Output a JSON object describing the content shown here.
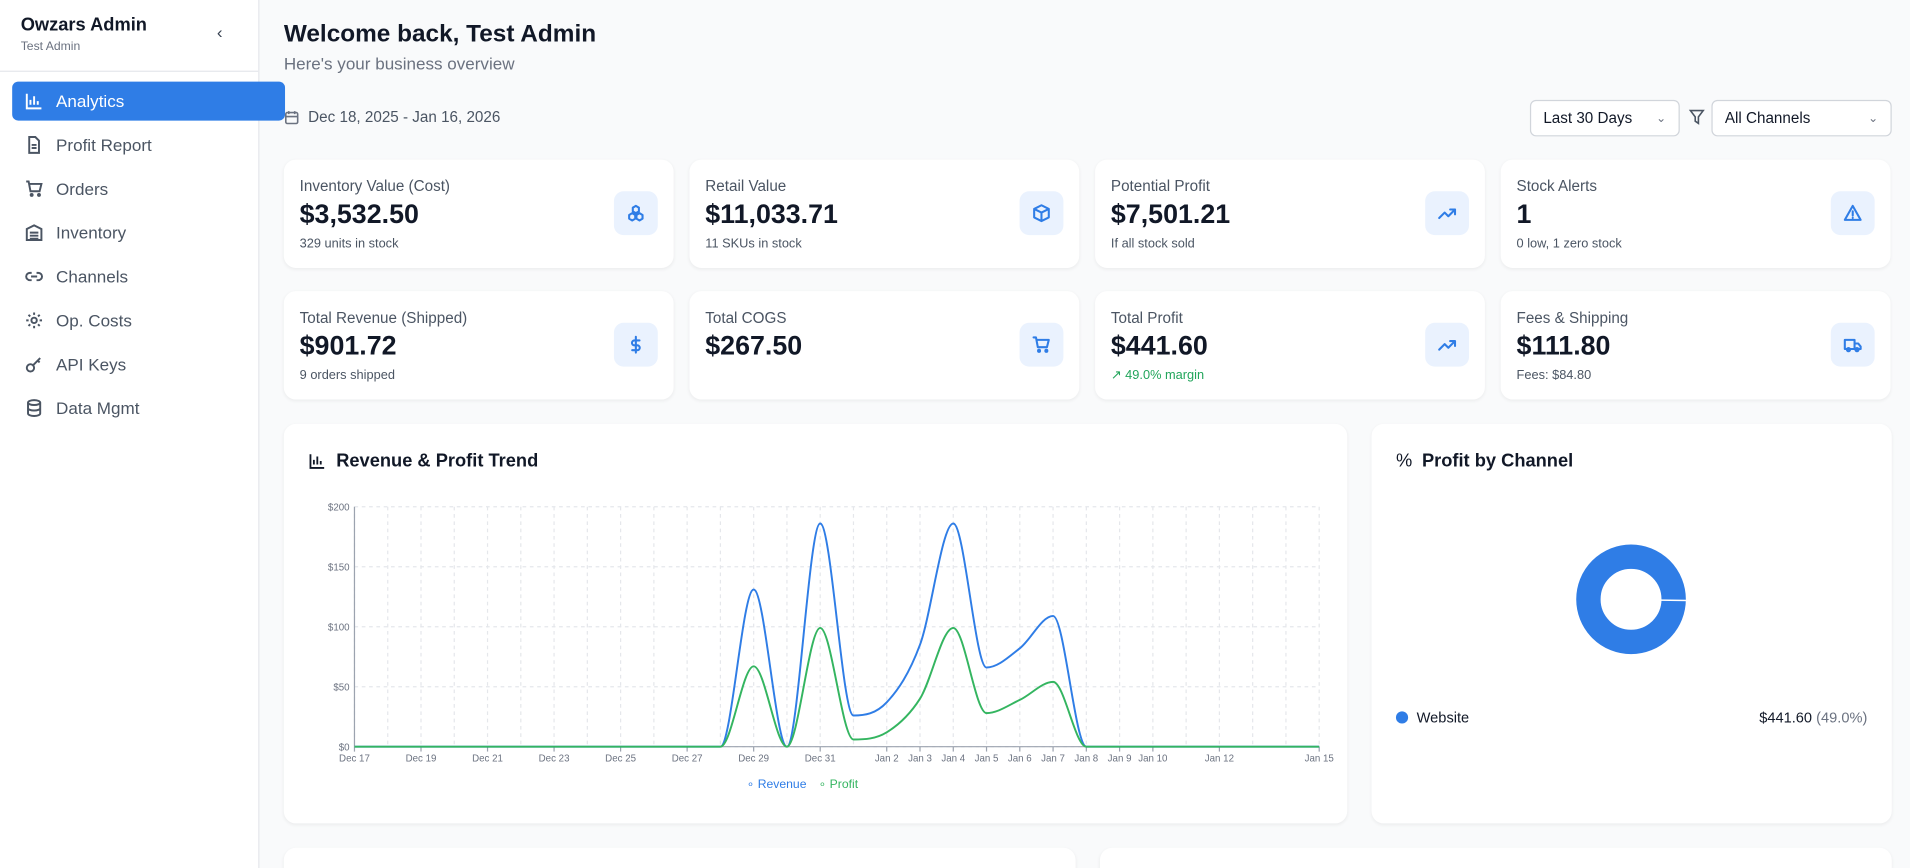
{
  "sidebar": {
    "title": "Owzars Admin",
    "user": "Test Admin",
    "collapse_icon": "chevron-left-icon",
    "items": [
      {
        "label": "Analytics",
        "icon": "bar-chart-icon",
        "active": true
      },
      {
        "label": "Profit Report",
        "icon": "file-spreadsheet-icon"
      },
      {
        "label": "Orders",
        "icon": "cart-icon"
      },
      {
        "label": "Inventory",
        "icon": "warehouse-icon"
      },
      {
        "label": "Channels",
        "icon": "link-icon"
      },
      {
        "label": "Op. Costs",
        "icon": "gear-icon"
      },
      {
        "label": "API Keys",
        "icon": "key-icon"
      },
      {
        "label": "Data Mgmt",
        "icon": "database-icon"
      }
    ]
  },
  "header": {
    "title": "Welcome back, Test Admin",
    "subtitle": "Here's your business overview",
    "date_range": "Dec 18, 2025 - Jan 16, 2026",
    "period": "Last 30 Days",
    "channel": "All Channels"
  },
  "stats": [
    {
      "label": "Inventory Value (Cost)",
      "value": "$3,532.50",
      "sub": "329 units in stock",
      "icon": "boxes-icon"
    },
    {
      "label": "Retail Value",
      "value": "$11,033.71",
      "sub": "11 SKUs in stock",
      "icon": "package-icon"
    },
    {
      "label": "Potential Profit",
      "value": "$7,501.21",
      "sub": "If all stock sold",
      "icon": "trending-up-icon"
    },
    {
      "label": "Stock Alerts",
      "value": "1",
      "sub": "0 low, 1 zero stock",
      "icon": "alert-triangle-icon"
    },
    {
      "label": "Total Revenue (Shipped)",
      "value": "$901.72",
      "sub": "9 orders shipped",
      "icon": "dollar-icon"
    },
    {
      "label": "Total COGS",
      "value": "$267.50",
      "sub": "",
      "icon": "cart-icon"
    },
    {
      "label": "Total Profit",
      "value": "$441.60",
      "sub": "49.0% margin",
      "sub_color": "#22a55b",
      "icon": "trending-up-icon"
    },
    {
      "label": "Fees & Shipping",
      "value": "$111.80",
      "sub": "Fees: $84.80",
      "icon": "truck-icon"
    }
  ],
  "colors": {
    "accent": "#2f7de6",
    "revenue": "#2f7de6",
    "profit": "#34b560"
  },
  "chart_data": [
    {
      "type": "line",
      "title": "Revenue & Profit Trend",
      "x": [
        "Dec 17",
        "Dec 18",
        "Dec 19",
        "Dec 20",
        "Dec 21",
        "Dec 22",
        "Dec 23",
        "Dec 24",
        "Dec 25",
        "Dec 26",
        "Dec 27",
        "Dec 28",
        "Dec 29",
        "Dec 30",
        "Dec 31",
        "Jan 1",
        "Jan 2",
        "Jan 3",
        "Jan 4",
        "Jan 5",
        "Jan 6",
        "Jan 7",
        "Jan 8",
        "Jan 9",
        "Jan 10",
        "Jan 11",
        "Jan 12",
        "Jan 13",
        "Jan 14",
        "Jan 15"
      ],
      "x_ticks": [
        "Dec 17",
        "Dec 19",
        "Dec 21",
        "Dec 23",
        "Dec 25",
        "Dec 27",
        "Dec 29",
        "Dec 31",
        "Jan 2",
        "Jan 3",
        "Jan 4",
        "Jan 5",
        "Jan 6",
        "Jan 7",
        "Jan 8",
        "Jan 9",
        "Jan 10",
        "Jan 12",
        "Jan 15"
      ],
      "y_ticks": [
        "$0",
        "$50",
        "$100",
        "$150",
        "$200"
      ],
      "ylim": [
        0,
        200
      ],
      "grid": true,
      "legend": "bottom",
      "series": [
        {
          "name": "Revenue",
          "values": [
            0,
            0,
            0,
            0,
            0,
            0,
            0,
            0,
            0,
            0,
            0,
            0,
            131,
            0,
            186,
            26,
            37,
            85,
            186,
            66,
            82,
            109,
            0,
            0,
            0,
            0,
            0,
            0,
            0,
            0
          ]
        },
        {
          "name": "Profit",
          "values": [
            0,
            0,
            0,
            0,
            0,
            0,
            0,
            0,
            0,
            0,
            0,
            0,
            67,
            0,
            99,
            6,
            12,
            40,
            99,
            28,
            39,
            54,
            0,
            0,
            0,
            0,
            0,
            0,
            0,
            0
          ]
        }
      ]
    },
    {
      "type": "pie",
      "title": "Profit by Channel",
      "donut": true,
      "categories": [
        "Website"
      ],
      "values": [
        441.6
      ],
      "labels": [
        {
          "name": "Website",
          "value": "$441.60",
          "pct": "(49.0%)"
        }
      ]
    }
  ]
}
